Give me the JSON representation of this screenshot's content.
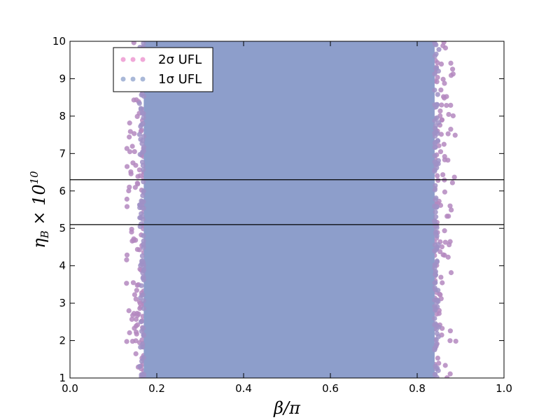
{
  "chart_data": {
    "type": "scatter",
    "title": "",
    "xlabel": "β/π",
    "ylabel": "η_B × 10^10",
    "xlim": [
      0.0,
      1.0
    ],
    "ylim": [
      1,
      10
    ],
    "x_ticks": [
      "0.0",
      "0.2",
      "0.4",
      "0.6",
      "0.8",
      "1.0"
    ],
    "y_ticks": [
      "1",
      "2",
      "3",
      "4",
      "5",
      "6",
      "7",
      "8",
      "9",
      "10"
    ],
    "grid": false,
    "legend": {
      "position": "upper-left"
    },
    "series": [
      {
        "name": "2σ UFL",
        "color": "#e78ac3",
        "x_range": [
          0.13,
          0.89
        ],
        "y_range": [
          1,
          10
        ],
        "dense_band": [
          0.17,
          0.84
        ],
        "marker": "circle"
      },
      {
        "name": "1σ UFL",
        "color": "#8da0cb",
        "x_range": [
          0.16,
          0.85
        ],
        "y_range": [
          1,
          10
        ],
        "dense_band": [
          0.17,
          0.84
        ],
        "marker": "circle"
      }
    ],
    "reference_lines": {
      "y": [
        5.1,
        6.3
      ],
      "color": "#000000"
    }
  }
}
